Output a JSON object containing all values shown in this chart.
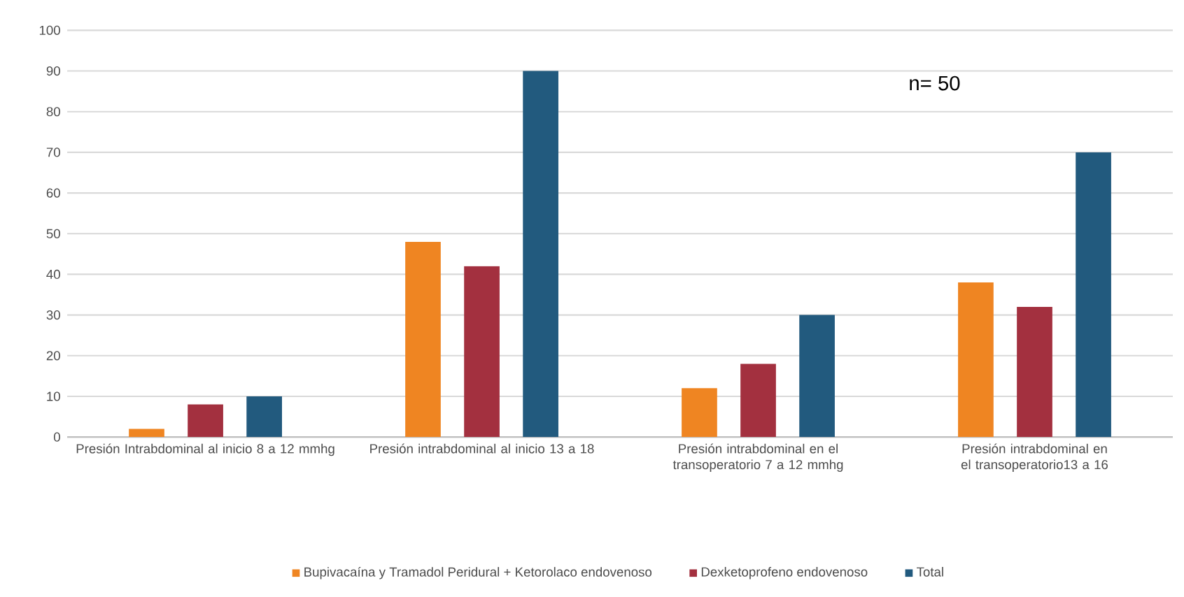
{
  "chart_data": {
    "type": "bar",
    "categories": [
      "Presión Intrabdominal al inicio 8 a 12 mmhg",
      "Presión intrabdominal al inicio 13 a 18",
      "Presión intrabdominal en el transoperatorio 7 a 12 mmhg",
      "Presión intrabdominal en el transoperatorio13 a 16"
    ],
    "series": [
      {
        "name": "Bupivacaína y Tramadol Peridural + Ketorolaco endovenoso",
        "color": "#ef8522",
        "values": [
          2,
          48,
          12,
          38
        ]
      },
      {
        "name": "Dexketoprofeno endovenoso",
        "color": "#a3303f",
        "values": [
          8,
          42,
          18,
          32
        ]
      },
      {
        "name": "Total",
        "color": "#225a7e",
        "values": [
          10,
          90,
          30,
          70
        ]
      }
    ],
    "ylim": [
      0,
      100
    ],
    "yticks": [
      0,
      10,
      20,
      30,
      40,
      50,
      60,
      70,
      80,
      90,
      100
    ],
    "grid": "y",
    "legend": "bottom",
    "annotations": [
      "n= 50"
    ]
  }
}
